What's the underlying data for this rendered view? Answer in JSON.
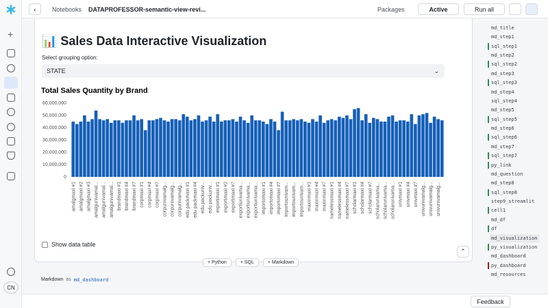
{
  "topbar": {
    "back": "Notebooks",
    "notebook": "DATAPROFESSOR-semantic-view-revi...",
    "packages": "Packages",
    "status": "Active",
    "run_all": "Run all"
  },
  "sidebar": {
    "user": "CN"
  },
  "cell": {
    "title": "📊 Sales Data Interactive Visualization",
    "select_label": "Select grouping option:",
    "select_value": "STATE",
    "checkbox": "Show data table"
  },
  "add_buttons": [
    "+ Python",
    "+ SQL",
    "+ Markdown"
  ],
  "next_cell": {
    "kind": "Markdown",
    "as": "as",
    "name": "md_dashboard"
  },
  "footer": {
    "feedback": "Feedback"
  },
  "outline": {
    "active": 23,
    "items": [
      {
        "name": "md_title"
      },
      {
        "name": "md_step1"
      },
      {
        "name": "sql_step1",
        "color": "#2e8b57"
      },
      {
        "name": "md_step2"
      },
      {
        "name": "sql_step2",
        "color": "#2e8b57"
      },
      {
        "name": "md_step3"
      },
      {
        "name": "sql_step3",
        "color": "#2e8b57"
      },
      {
        "name": "md_step4"
      },
      {
        "name": "sql_step4"
      },
      {
        "name": "md_step5"
      },
      {
        "name": "sql_step5",
        "color": "#2e8b57"
      },
      {
        "name": "md_step6"
      },
      {
        "name": "sql_step6",
        "color": "#2e8b57"
      },
      {
        "name": "md_step7"
      },
      {
        "name": "sql_step7",
        "color": "#2e8b57"
      },
      {
        "name": "py_link",
        "color": "#2e8b57"
      },
      {
        "name": "md_question"
      },
      {
        "name": "md_step8"
      },
      {
        "name": "sql_step8",
        "color": "#2e8b57"
      },
      {
        "name": "step9_streamlit"
      },
      {
        "name": "cell1",
        "color": "#2e8b57"
      },
      {
        "name": "md_df"
      },
      {
        "name": "df",
        "color": "#2e8b57"
      },
      {
        "name": "md_visualization"
      },
      {
        "name": "py_visualization",
        "color": "#2e8b57"
      },
      {
        "name": "md_dashboard"
      },
      {
        "name": "py_dashboard",
        "color": "#a3161a"
      },
      {
        "name": "md_resources"
      }
    ]
  },
  "chart_data": {
    "type": "bar",
    "title": "Total Sales Quantity by Brand",
    "color": "#1660b8",
    "ylim": [
      0,
      60000000
    ],
    "yticks": [
      0,
      {
        "value": 10000000,
        "label": "10,000,000"
      },
      {
        "value": 20000000,
        "label": "20,000,000"
      },
      {
        "value": 30000000,
        "label": "30,000,000"
      },
      {
        "value": 40000000,
        "label": "40,000,000"
      },
      {
        "value": 50000000,
        "label": "50,000,000"
      },
      {
        "value": 60000000,
        "label": "60,000,000"
      }
    ],
    "categories": [
      "amalgmaxi #1",
      null,
      "amalgmaxi #2",
      null,
      "amalgmaxi #3",
      null,
      "amalgunivamal...",
      null,
      "amalgunivamal...",
      null,
      "amalgunivamal...",
      null,
      "brandmaxi #1",
      null,
      "brandmaxi #4",
      null,
      "brandmaxi #7",
      null,
      "corpmaxi #1",
      null,
      "corpmaxi #4",
      null,
      "corpmaxi #7",
      null,
      "corpunivamalg...",
      null,
      "corpunivamalg...",
      null,
      "corpunivamalg...",
      null,
      "edu packmaxi #1",
      null,
      "edu packmaxi #4",
      null,
      "edu packuniv...",
      null,
      "edu packuniv...",
      null,
      "exportimaxi #1",
      null,
      "exportimaxi #2",
      null,
      "exportimaxi #7",
      null,
      "exportiunivama...",
      null,
      "exportiunivama...",
      null,
      "exportiunivama...",
      null,
      "importomaxi #1",
      null,
      "importomaxi #4",
      null,
      "importomaxi #7",
      null,
      "importounivam...",
      null,
      "importounivam...",
      null,
      "importounivam...",
      null,
      "maxinmaxi #1",
      null,
      "maxinmaxi #4",
      null,
      "maxinmaxi #7",
      null,
      "namelessmaxi #1",
      null,
      "namelessmaxi #4",
      null,
      "namelessmaxi #7",
      null,
      "scholarmaxi #1",
      null,
      "scholarmaxi #4",
      null,
      "scholarmaxi #7",
      null,
      "scholarunivama...",
      null,
      "scholarunivama...",
      null,
      "scholarunivama...",
      null,
      "univmaxi #1",
      null,
      "univmaxi #4",
      null,
      "univmaxi #7",
      null,
      "univunivamalg...",
      null,
      "univunivamalg...",
      null,
      "univunivamalg...",
      null
    ],
    "values": [
      45000000,
      43000000,
      45000000,
      50000000,
      45000000,
      47000000,
      54000000,
      47000000,
      46000000,
      47000000,
      44000000,
      46000000,
      46000000,
      44000000,
      46000000,
      46000000,
      50000000,
      46000000,
      47000000,
      38000000,
      46000000,
      46000000,
      47000000,
      48000000,
      46000000,
      45000000,
      47000000,
      47000000,
      46000000,
      51000000,
      49000000,
      46000000,
      47000000,
      50000000,
      45000000,
      46000000,
      49000000,
      45000000,
      51000000,
      45000000,
      46000000,
      46000000,
      47000000,
      45000000,
      49000000,
      46000000,
      44000000,
      50000000,
      46000000,
      46000000,
      45000000,
      43000000,
      47000000,
      45000000,
      38000000,
      53000000,
      46000000,
      46000000,
      47000000,
      46000000,
      47000000,
      45000000,
      44000000,
      47000000,
      45000000,
      50000000,
      44000000,
      46000000,
      47000000,
      46000000,
      49000000,
      48000000,
      50000000,
      47000000,
      55000000,
      56000000,
      46000000,
      51000000,
      44000000,
      48000000,
      47000000,
      45000000,
      45000000,
      49000000,
      50000000,
      45000000,
      46000000,
      46000000,
      45000000,
      51000000,
      43000000,
      50000000,
      51000000,
      52000000,
      44000000,
      49000000,
      47000000,
      46000000
    ]
  }
}
